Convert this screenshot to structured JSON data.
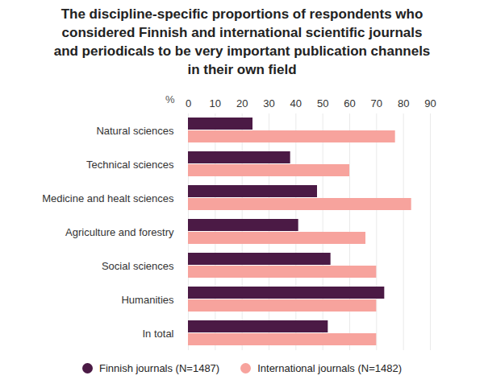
{
  "chart_data": {
    "type": "bar",
    "orientation": "horizontal",
    "title": "The discipline-specific proportions of respondents who considered Finnish and international scientific journals and periodicals to be very important publication channels in their own field",
    "xlabel": "%",
    "categories": [
      "Natural sciences",
      "Technical sciences",
      "Medicine and healt sciences",
      "Agriculture and forestry",
      "Social sciences",
      "Humanities",
      "In total"
    ],
    "series": [
      {
        "name": "Finnish journals (N=1487)",
        "color": "#4b1a45",
        "values": [
          24,
          38,
          48,
          41,
          53,
          73,
          52
        ]
      },
      {
        "name": "International journals (N=1482)",
        "color": "#f7a39d",
        "values": [
          77,
          60,
          83,
          66,
          70,
          70,
          70
        ]
      }
    ],
    "xlim": [
      0,
      90
    ],
    "xticks": [
      0,
      10,
      20,
      30,
      40,
      50,
      60,
      70,
      80,
      90
    ],
    "grid": true,
    "legend": "bottom"
  }
}
